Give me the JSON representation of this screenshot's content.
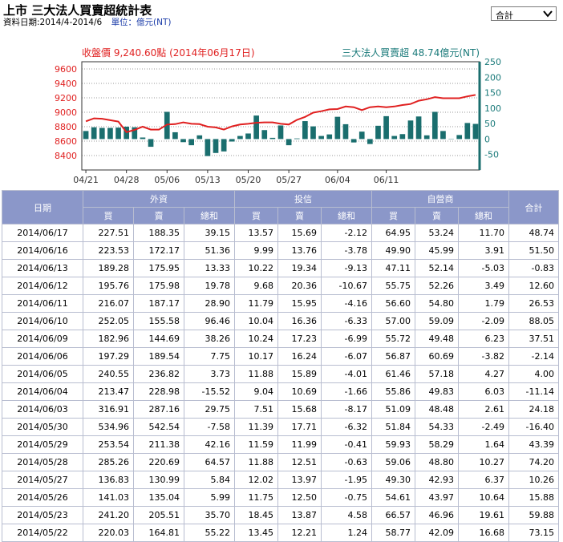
{
  "page": {
    "title": "上市 三大法人買賣超統計表",
    "date_range": "資料日期:2014/4-2014/6",
    "unit": "單位：億元(NT)",
    "select_value": "合計"
  },
  "chart_data": {
    "type": "bar+line",
    "left_label": "收盤價 9,240.60點 (2014年06月17日)",
    "right_label": "三大法人買賣超 48.74億元(NT)",
    "left_ticks": [
      "9600",
      "9400",
      "9200",
      "9000",
      "8800",
      "8600",
      "8400"
    ],
    "right_ticks": [
      "250",
      "200",
      "150",
      "100",
      "50",
      "0",
      "-50"
    ],
    "x_ticks": [
      "04/21",
      "04/28",
      "05/06",
      "05/13",
      "05/20",
      "05/27",
      "06/04",
      "06/11"
    ],
    "price_ylim": [
      8200,
      9700
    ],
    "net_ylim": [
      -100,
      250
    ],
    "price_color": "#e02020",
    "bar_color": "#1a6e6e",
    "price": [
      8875,
      8915,
      8910,
      8890,
      8870,
      8725,
      8755,
      8800,
      8760,
      8760,
      8830,
      8835,
      8860,
      8840,
      8835,
      8800,
      8790,
      8760,
      8805,
      8830,
      8840,
      8855,
      8860,
      8860,
      8840,
      8830,
      8895,
      8935,
      8995,
      9015,
      9040,
      9045,
      9080,
      9070,
      9030,
      9070,
      9080,
      9070,
      9080,
      9100,
      9115,
      9160,
      9180,
      9210,
      9195,
      9195,
      9195,
      9220,
      9240
    ],
    "net": [
      26,
      38,
      36,
      36,
      37,
      40,
      38,
      5,
      -25,
      0,
      88,
      22,
      -10,
      -20,
      12,
      -55,
      -45,
      -40,
      -8,
      10,
      18,
      76,
      29,
      4,
      44,
      -20,
      2,
      58,
      41,
      10,
      15,
      72,
      48,
      -11,
      24,
      -16,
      43,
      74,
      10,
      16,
      60,
      73,
      12,
      88,
      26,
      -1,
      13,
      52,
      49
    ],
    "table": {
      "headers": {
        "date": "日期",
        "foreign": "外資",
        "trust": "投信",
        "dealer": "自營商",
        "total": "合計",
        "buy": "買",
        "sell": "賣",
        "net": "總和"
      },
      "rows": [
        [
          "2014/06/17",
          "227.51",
          "188.35",
          "39.15",
          "13.57",
          "15.69",
          "-2.12",
          "64.95",
          "53.24",
          "11.70",
          "48.74"
        ],
        [
          "2014/06/16",
          "223.53",
          "172.17",
          "51.36",
          "9.99",
          "13.76",
          "-3.78",
          "49.90",
          "45.99",
          "3.91",
          "51.50"
        ],
        [
          "2014/06/13",
          "189.28",
          "175.95",
          "13.33",
          "10.22",
          "19.34",
          "-9.13",
          "47.11",
          "52.14",
          "-5.03",
          "-0.83"
        ],
        [
          "2014/06/12",
          "195.76",
          "175.98",
          "19.78",
          "9.68",
          "20.36",
          "-10.67",
          "55.75",
          "52.26",
          "3.49",
          "12.60"
        ],
        [
          "2014/06/11",
          "216.07",
          "187.17",
          "28.90",
          "11.79",
          "15.95",
          "-4.16",
          "56.60",
          "54.80",
          "1.79",
          "26.53"
        ],
        [
          "2014/06/10",
          "252.05",
          "155.58",
          "96.46",
          "10.04",
          "16.36",
          "-6.33",
          "57.00",
          "59.09",
          "-2.09",
          "88.05"
        ],
        [
          "2014/06/09",
          "182.96",
          "144.69",
          "38.26",
          "10.24",
          "17.23",
          "-6.99",
          "55.72",
          "49.48",
          "6.23",
          "37.51"
        ],
        [
          "2014/06/06",
          "197.29",
          "189.54",
          "7.75",
          "10.17",
          "16.24",
          "-6.07",
          "56.87",
          "60.69",
          "-3.82",
          "-2.14"
        ],
        [
          "2014/06/05",
          "240.55",
          "236.82",
          "3.73",
          "11.88",
          "15.89",
          "-4.01",
          "61.46",
          "57.18",
          "4.27",
          "4.00"
        ],
        [
          "2014/06/04",
          "213.47",
          "228.98",
          "-15.52",
          "9.04",
          "10.69",
          "-1.66",
          "55.86",
          "49.83",
          "6.03",
          "-11.14"
        ],
        [
          "2014/06/03",
          "316.91",
          "287.16",
          "29.75",
          "7.51",
          "15.68",
          "-8.17",
          "51.09",
          "48.48",
          "2.61",
          "24.18"
        ],
        [
          "2014/05/30",
          "534.96",
          "542.54",
          "-7.58",
          "11.39",
          "17.71",
          "-6.32",
          "51.84",
          "54.33",
          "-2.49",
          "-16.40"
        ],
        [
          "2014/05/29",
          "253.54",
          "211.38",
          "42.16",
          "11.59",
          "11.99",
          "-0.41",
          "59.93",
          "58.29",
          "1.64",
          "43.39"
        ],
        [
          "2014/05/28",
          "285.26",
          "220.69",
          "64.57",
          "11.88",
          "12.51",
          "-0.63",
          "59.06",
          "48.80",
          "10.27",
          "74.20"
        ],
        [
          "2014/05/27",
          "136.83",
          "130.99",
          "5.84",
          "12.02",
          "13.97",
          "-1.95",
          "49.30",
          "42.93",
          "6.37",
          "10.26"
        ],
        [
          "2014/05/26",
          "141.03",
          "135.04",
          "5.99",
          "11.75",
          "12.50",
          "-0.75",
          "54.61",
          "43.97",
          "10.64",
          "15.88"
        ],
        [
          "2014/05/23",
          "241.20",
          "205.51",
          "35.70",
          "18.45",
          "13.87",
          "4.58",
          "66.57",
          "46.96",
          "19.61",
          "59.88"
        ],
        [
          "2014/05/22",
          "220.03",
          "164.81",
          "55.22",
          "13.45",
          "12.21",
          "1.24",
          "58.77",
          "42.09",
          "16.68",
          "73.15"
        ]
      ]
    }
  }
}
